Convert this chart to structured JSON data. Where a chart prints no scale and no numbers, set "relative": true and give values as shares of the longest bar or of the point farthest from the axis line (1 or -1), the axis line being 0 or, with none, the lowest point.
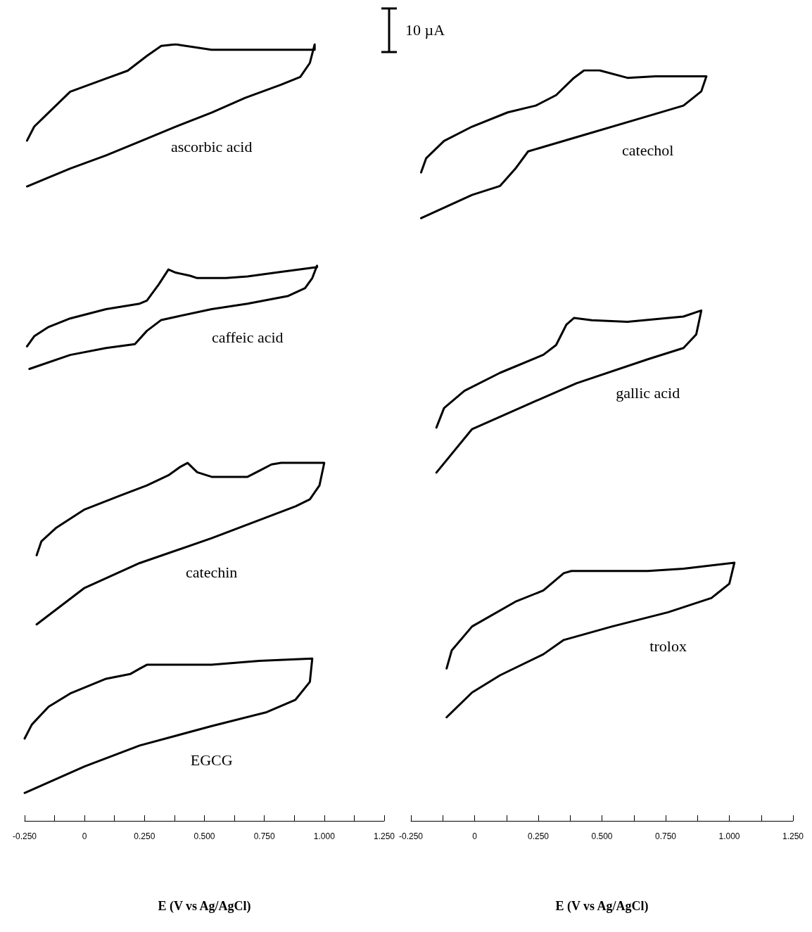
{
  "chart_data": [
    {
      "type": "line",
      "relative": true,
      "marker": "none",
      "xlabel": "E (V vs Ag/AgCl)",
      "xlim": [
        -0.25,
        1.25
      ],
      "xticks": [
        {
          "value": -0.25,
          "label": "-0.250"
        },
        {
          "value": -0.125,
          "label": null
        },
        {
          "value": 0,
          "label": "0"
        },
        {
          "value": 0.125,
          "label": null
        },
        {
          "value": 0.25,
          "label": "0.250"
        },
        {
          "value": 0.375,
          "label": null
        },
        {
          "value": 0.5,
          "label": "0.500"
        },
        {
          "value": 0.625,
          "label": null
        },
        {
          "value": 0.75,
          "label": "0.750"
        },
        {
          "value": 0.875,
          "label": null
        },
        {
          "value": 1,
          "label": "1.000"
        },
        {
          "value": 1.125,
          "label": null
        },
        {
          "value": 1.25,
          "label": "1.250"
        }
      ],
      "annotations": [
        "10 µA"
      ],
      "series": [
        {
          "name": "ascorbic acid",
          "color": "#000000",
          "x": [
            -0.24,
            -0.21,
            -0.15,
            -0.06,
            0.09,
            0.18,
            0.26,
            0.32,
            0.38,
            0.53,
            0.96,
            0.96,
            0.94,
            0.9,
            0.82,
            0.67,
            0.53,
            0.38,
            0.24,
            0.09,
            -0.06,
            -0.24
          ],
          "values": [
            0.876,
            0.894,
            0.912,
            0.939,
            0.956,
            0.966,
            0.985,
            0.998,
            1,
            0.993,
            0.993,
            1,
            0.976,
            0.958,
            0.948,
            0.931,
            0.912,
            0.894,
            0.876,
            0.857,
            0.84,
            0.817
          ]
        },
        {
          "name": "caffeic acid",
          "color": "#000000",
          "x": [
            -0.24,
            -0.21,
            -0.15,
            -0.06,
            0.09,
            0.23,
            0.26,
            0.31,
            0.35,
            0.38,
            0.44,
            0.47,
            0.59,
            0.68,
            0.82,
            0.97,
            0.97,
            0.95,
            0.92,
            0.85,
            0.68,
            0.53,
            0.38,
            0.32,
            0.26,
            0.21,
            0.09,
            -0.06,
            -0.23
          ],
          "values": [
            0.611,
            0.624,
            0.636,
            0.647,
            0.659,
            0.666,
            0.67,
            0.691,
            0.71,
            0.706,
            0.702,
            0.699,
            0.699,
            0.701,
            0.707,
            0.713,
            0.715,
            0.699,
            0.686,
            0.676,
            0.666,
            0.659,
            0.649,
            0.645,
            0.631,
            0.614,
            0.609,
            0.6,
            0.582
          ]
        },
        {
          "name": "catechin",
          "color": "#000000",
          "x": [
            -0.2,
            -0.18,
            -0.12,
            0,
            0.15,
            0.26,
            0.35,
            0.4,
            0.43,
            0.47,
            0.53,
            0.68,
            0.73,
            0.78,
            0.82,
            1,
            0.98,
            0.94,
            0.88,
            0.76,
            0.53,
            0.23,
            0,
            -0.2
          ],
          "values": [
            0.342,
            0.36,
            0.377,
            0.401,
            0.419,
            0.432,
            0.445,
            0.456,
            0.461,
            0.449,
            0.443,
            0.443,
            0.451,
            0.459,
            0.461,
            0.461,
            0.432,
            0.414,
            0.405,
            0.391,
            0.364,
            0.332,
            0.3,
            0.253
          ]
        },
        {
          "name": "EGCG",
          "color": "#000000",
          "x": [
            -0.25,
            -0.22,
            -0.15,
            -0.06,
            0.09,
            0.19,
            0.23,
            0.26,
            0.53,
            0.73,
            0.95,
            0.94,
            0.88,
            0.76,
            0.53,
            0.23,
            0,
            -0.25
          ],
          "values": [
            0.106,
            0.124,
            0.147,
            0.164,
            0.183,
            0.189,
            0.196,
            0.201,
            0.201,
            0.206,
            0.209,
            0.179,
            0.156,
            0.14,
            0.122,
            0.097,
            0.07,
            0.036
          ]
        }
      ]
    },
    {
      "type": "line",
      "relative": true,
      "marker": "none",
      "xlabel": "E (V vs Ag/AgCl)",
      "xlim": [
        -0.25,
        1.25
      ],
      "xticks": [
        {
          "value": -0.25,
          "label": "-0.250"
        },
        {
          "value": -0.125,
          "label": null
        },
        {
          "value": 0,
          "label": "0"
        },
        {
          "value": 0.125,
          "label": null
        },
        {
          "value": 0.25,
          "label": "0.250"
        },
        {
          "value": 0.375,
          "label": null
        },
        {
          "value": 0.5,
          "label": "0.500"
        },
        {
          "value": 0.625,
          "label": null
        },
        {
          "value": 0.75,
          "label": "0.750"
        },
        {
          "value": 0.875,
          "label": null
        },
        {
          "value": 1,
          "label": "1.000"
        },
        {
          "value": 1.125,
          "label": null
        },
        {
          "value": 1.25,
          "label": "1.250"
        }
      ],
      "series": [
        {
          "name": "catechol",
          "color": "#000000",
          "x": [
            -0.21,
            -0.19,
            -0.12,
            -0.01,
            0.13,
            0.24,
            0.32,
            0.39,
            0.43,
            0.49,
            0.6,
            0.71,
            0.91,
            0.89,
            0.82,
            0.68,
            0.4,
            0.21,
            0.16,
            0.1,
            -0.01,
            -0.21
          ],
          "values": [
            0.864,
            0.883,
            0.906,
            0.925,
            0.944,
            0.953,
            0.967,
            0.99,
            1,
            1,
            0.99,
            0.992,
            0.992,
            0.972,
            0.953,
            0.939,
            0.911,
            0.892,
            0.869,
            0.846,
            0.834,
            0.803
          ]
        },
        {
          "name": "gallic acid",
          "color": "#000000",
          "x": [
            -0.15,
            -0.12,
            -0.04,
            0.1,
            0.27,
            0.32,
            0.36,
            0.39,
            0.46,
            0.6,
            0.82,
            0.89,
            0.87,
            0.82,
            0.68,
            0.4,
            0.21,
            -0.01,
            -0.15
          ],
          "values": [
            0.524,
            0.55,
            0.573,
            0.597,
            0.621,
            0.634,
            0.661,
            0.67,
            0.667,
            0.665,
            0.672,
            0.68,
            0.648,
            0.63,
            0.615,
            0.583,
            0.555,
            0.522,
            0.464
          ]
        },
        {
          "name": "trolox",
          "color": "#000000",
          "x": [
            -0.11,
            -0.09,
            -0.01,
            0.16,
            0.27,
            0.35,
            0.38,
            0.68,
            0.82,
            1.02,
            1,
            0.93,
            0.76,
            0.54,
            0.35,
            0.27,
            0.1,
            -0.01,
            -0.11
          ],
          "values": [
            0.203,
            0.227,
            0.259,
            0.292,
            0.307,
            0.33,
            0.333,
            0.333,
            0.336,
            0.344,
            0.316,
            0.297,
            0.278,
            0.259,
            0.241,
            0.222,
            0.194,
            0.171,
            0.138
          ]
        }
      ]
    }
  ]
}
